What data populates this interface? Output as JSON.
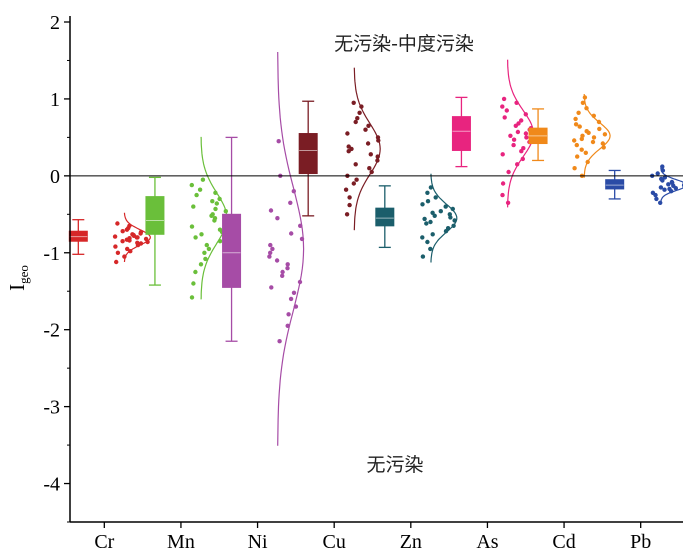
{
  "chart_data": {
    "type": "box-raincloud",
    "ylabel": "I",
    "ylabel_sub": "geo",
    "ylim": [
      -4.5,
      2
    ],
    "yticks": [
      -4,
      -3,
      -2,
      -1,
      0,
      1,
      2
    ],
    "ytick_labels": [
      "-4",
      "-3",
      "-2",
      "-1",
      "0",
      "1",
      "2"
    ],
    "reference_line": 0,
    "grid": false,
    "annotations": [
      {
        "text": "无污染-中度污染",
        "x": "Ni-Cu",
        "y": 1.7
      },
      {
        "text": "无污染",
        "x": "Cu-Zn",
        "y": -3.8
      }
    ],
    "series": [
      {
        "name": "Cr",
        "color": "#d62728",
        "min": -1.02,
        "q1": -0.85,
        "median": -0.79,
        "q3": -0.72,
        "max": -0.57,
        "dist_mean": -0.8,
        "dist_sd": 0.1,
        "points": [
          -0.62,
          -0.65,
          -0.68,
          -0.7,
          -0.72,
          -0.73,
          -0.75,
          -0.76,
          -0.77,
          -0.78,
          -0.79,
          -0.8,
          -0.8,
          -0.81,
          -0.82,
          -0.83,
          -0.84,
          -0.85,
          -0.86,
          -0.87,
          -0.88,
          -0.9,
          -0.92,
          -0.95,
          -0.98,
          -1.0,
          -1.05,
          -1.12
        ]
      },
      {
        "name": "Mn",
        "color": "#6abf3a",
        "min": -1.42,
        "q1": -0.76,
        "median": -0.58,
        "q3": -0.27,
        "max": -0.02,
        "dist_mean": -0.55,
        "dist_sd": 0.33,
        "points": [
          -0.05,
          -0.12,
          -0.18,
          -0.22,
          -0.25,
          -0.3,
          -0.33,
          -0.36,
          -0.4,
          -0.43,
          -0.46,
          -0.5,
          -0.52,
          -0.55,
          -0.58,
          -0.6,
          -0.63,
          -0.66,
          -0.7,
          -0.73,
          -0.76,
          -0.8,
          -0.85,
          -0.9,
          -0.95,
          -1.0,
          -1.08,
          -1.15,
          -1.25,
          -1.4,
          -1.58
        ]
      },
      {
        "name": "Ni",
        "color": "#a64ca6",
        "min": -2.15,
        "q1": -1.45,
        "median": -1.0,
        "q3": -0.5,
        "max": 0.5,
        "dist_mean": -0.95,
        "dist_sd": 0.8,
        "points": [
          0.45,
          0.0,
          -0.2,
          -0.35,
          -0.45,
          -0.55,
          -0.65,
          -0.75,
          -0.82,
          -0.9,
          -0.95,
          -1.0,
          -1.05,
          -1.1,
          -1.15,
          -1.2,
          -1.25,
          -1.3,
          -1.38,
          -1.45,
          -1.52,
          -1.6,
          -1.7,
          -1.8,
          -1.95,
          -2.15
        ]
      },
      {
        "name": "Cu",
        "color": "#7a1d24",
        "min": -0.52,
        "q1": 0.03,
        "median": 0.33,
        "q3": 0.55,
        "max": 0.97,
        "dist_mean": 0.35,
        "dist_sd": 0.33,
        "points": [
          0.95,
          0.9,
          0.82,
          0.75,
          0.7,
          0.65,
          0.6,
          0.55,
          0.5,
          0.46,
          0.42,
          0.38,
          0.35,
          0.32,
          0.28,
          0.25,
          0.2,
          0.15,
          0.1,
          0.05,
          0.0,
          -0.05,
          -0.1,
          -0.18,
          -0.28,
          -0.38,
          -0.5
        ]
      },
      {
        "name": "Zn",
        "color": "#1b5e6b",
        "min": -0.93,
        "q1": -0.65,
        "median": -0.55,
        "q3": -0.42,
        "max": -0.13,
        "dist_mean": -0.55,
        "dist_sd": 0.18,
        "points": [
          -0.15,
          -0.22,
          -0.28,
          -0.33,
          -0.37,
          -0.4,
          -0.43,
          -0.46,
          -0.48,
          -0.5,
          -0.52,
          -0.54,
          -0.56,
          -0.58,
          -0.6,
          -0.62,
          -0.65,
          -0.68,
          -0.72,
          -0.76,
          -0.8,
          -0.86,
          -0.95,
          -1.05
        ]
      },
      {
        "name": "As",
        "color": "#e8247f",
        "min": 0.12,
        "q1": 0.33,
        "median": 0.58,
        "q3": 0.77,
        "max": 1.02,
        "dist_mean": 0.55,
        "dist_sd": 0.3,
        "points": [
          1.0,
          0.95,
          0.9,
          0.85,
          0.8,
          0.76,
          0.72,
          0.68,
          0.65,
          0.62,
          0.6,
          0.57,
          0.55,
          0.52,
          0.5,
          0.47,
          0.44,
          0.4,
          0.36,
          0.32,
          0.28,
          0.22,
          0.15,
          0.05,
          -0.1,
          -0.25,
          -0.35
        ]
      },
      {
        "name": "Cd",
        "color": "#f0891a",
        "min": 0.2,
        "q1": 0.42,
        "median": 0.52,
        "q3": 0.62,
        "max": 0.87,
        "dist_mean": 0.52,
        "dist_sd": 0.17,
        "points": [
          1.02,
          0.95,
          0.88,
          0.82,
          0.78,
          0.74,
          0.7,
          0.67,
          0.64,
          0.61,
          0.58,
          0.56,
          0.54,
          0.52,
          0.5,
          0.48,
          0.46,
          0.44,
          0.42,
          0.4,
          0.37,
          0.34,
          0.3,
          0.25,
          0.18,
          0.1,
          0.0
        ]
      },
      {
        "name": "Pb",
        "color": "#2a4ba6",
        "min": -0.3,
        "q1": -0.17,
        "median": -0.12,
        "q3": -0.05,
        "max": 0.07,
        "dist_mean": -0.12,
        "dist_sd": 0.07,
        "points": [
          0.12,
          0.07,
          0.03,
          0.0,
          -0.02,
          -0.04,
          -0.06,
          -0.08,
          -0.09,
          -0.1,
          -0.11,
          -0.12,
          -0.13,
          -0.14,
          -0.15,
          -0.16,
          -0.17,
          -0.18,
          -0.2,
          -0.22,
          -0.25,
          -0.3,
          -0.35
        ]
      }
    ]
  }
}
